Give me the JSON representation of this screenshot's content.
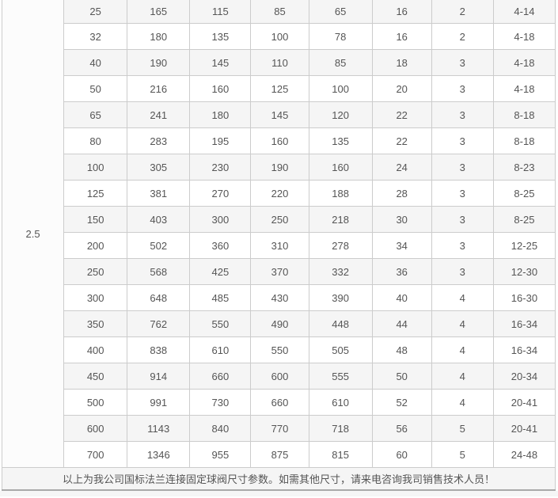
{
  "table": {
    "group_value": "2.5",
    "rows": [
      [
        "25",
        "165",
        "115",
        "85",
        "65",
        "16",
        "2",
        "4-14"
      ],
      [
        "32",
        "180",
        "135",
        "100",
        "78",
        "16",
        "2",
        "4-18"
      ],
      [
        "40",
        "190",
        "145",
        "110",
        "85",
        "18",
        "3",
        "4-18"
      ],
      [
        "50",
        "216",
        "160",
        "125",
        "100",
        "20",
        "3",
        "4-18"
      ],
      [
        "65",
        "241",
        "180",
        "145",
        "120",
        "22",
        "3",
        "8-18"
      ],
      [
        "80",
        "283",
        "195",
        "160",
        "135",
        "22",
        "3",
        "8-18"
      ],
      [
        "100",
        "305",
        "230",
        "190",
        "160",
        "24",
        "3",
        "8-23"
      ],
      [
        "125",
        "381",
        "270",
        "220",
        "188",
        "28",
        "3",
        "8-25"
      ],
      [
        "150",
        "403",
        "300",
        "250",
        "218",
        "30",
        "3",
        "8-25"
      ],
      [
        "200",
        "502",
        "360",
        "310",
        "278",
        "34",
        "3",
        "12-25"
      ],
      [
        "250",
        "568",
        "425",
        "370",
        "332",
        "36",
        "3",
        "12-30"
      ],
      [
        "300",
        "648",
        "485",
        "430",
        "390",
        "40",
        "4",
        "16-30"
      ],
      [
        "350",
        "762",
        "550",
        "490",
        "448",
        "44",
        "4",
        "16-34"
      ],
      [
        "400",
        "838",
        "610",
        "550",
        "505",
        "48",
        "4",
        "16-34"
      ],
      [
        "450",
        "914",
        "660",
        "600",
        "555",
        "50",
        "4",
        "20-34"
      ],
      [
        "500",
        "991",
        "730",
        "660",
        "610",
        "52",
        "4",
        "20-41"
      ],
      [
        "600",
        "1143",
        "840",
        "770",
        "718",
        "56",
        "5",
        "20-41"
      ],
      [
        "700",
        "1346",
        "955",
        "875",
        "815",
        "60",
        "5",
        "24-48"
      ]
    ]
  },
  "footer": {
    "note": "以上为我公司国标法兰连接固定球阀尺寸参数。如需其他尺寸，请来电咨询我司销售技术人员！"
  },
  "colors": {
    "row_shade_bg": "#f5f5f5",
    "row_bg": "#ffffff",
    "group_cell_bg": "#fcfcfc",
    "border": "#cccccc",
    "text": "#555555",
    "footer_bg": "#f5f5f5",
    "bottom_line": "#a9a9a9"
  }
}
